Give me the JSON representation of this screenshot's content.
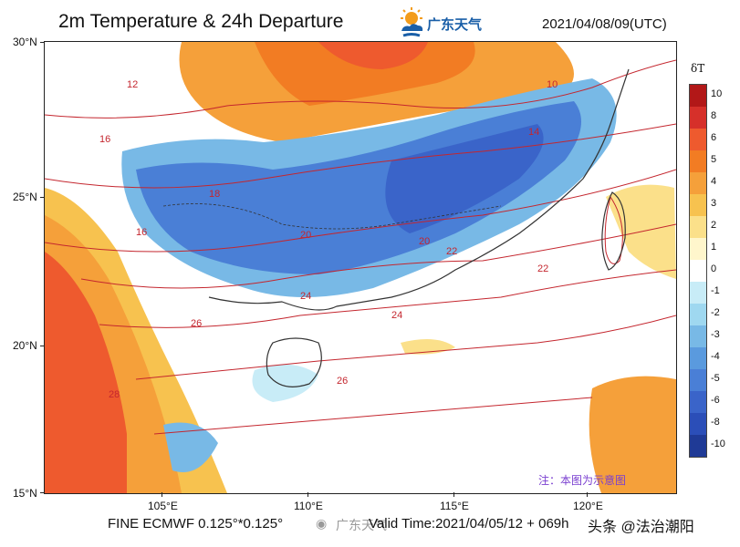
{
  "header": {
    "title": "2m Temperature & 24h Departure",
    "logo_text": "广东天气",
    "datetime": "2021/04/08/09(UTC)"
  },
  "axes": {
    "lat_labels": [
      "30°N",
      "25°N",
      "20°N",
      "15°N"
    ],
    "lon_labels": [
      "105°E",
      "110°E",
      "115°E",
      "120°E"
    ]
  },
  "colorbar": {
    "title": "δT",
    "labels": [
      "10",
      "8",
      "6",
      "5",
      "4",
      "3",
      "2",
      "1",
      "0",
      "-1",
      "-2",
      "-3",
      "-4",
      "-5",
      "-6",
      "-8",
      "-10"
    ],
    "colors": [
      "#b21818",
      "#d6302a",
      "#ee5a2e",
      "#f27c23",
      "#f5a03a",
      "#f7c24f",
      "#fbe08a",
      "#fff6cc",
      "#ffffff",
      "#c8ecf7",
      "#9fd8f0",
      "#78b9e6",
      "#5a9ade",
      "#4a7fd6",
      "#3a64c9",
      "#2b4eb8",
      "#1f3a96"
    ]
  },
  "contour_labels": [
    "12",
    "14",
    "16",
    "18",
    "20",
    "22",
    "24",
    "26",
    "28",
    "10"
  ],
  "footer": {
    "model": "FINE ECMWF 0.125°*0.125°",
    "valid_time": "Valid Time:2021/04/05/12 + 069h",
    "note": "注：本图为示意图",
    "weibo_text": "广东天气",
    "watermark": "头条 @法治潮阳"
  },
  "colors": {
    "cold_anomaly": "#3a64c9",
    "warm_anomaly": "#f27c23",
    "isotherm": "#c4262e",
    "coastline": "#333333"
  }
}
